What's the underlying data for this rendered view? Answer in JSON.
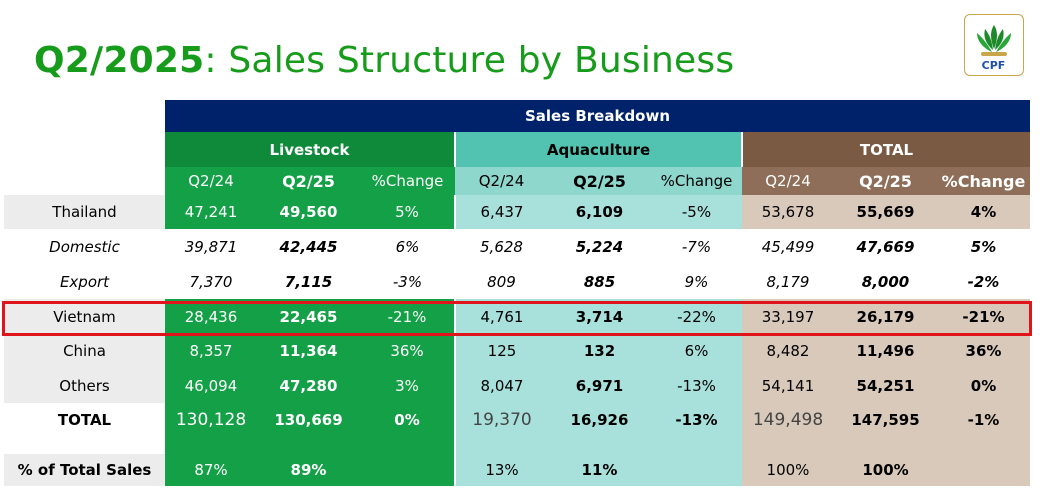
{
  "title": {
    "bold_part": "Q2/2025",
    "rest": ": Sales Structure by Business"
  },
  "logo": {
    "text": "CPF",
    "icon": "cpf-leaf-logo-icon"
  },
  "header": {
    "breakdown": "Sales Breakdown",
    "groups": [
      "Livestock",
      "Aquaculture",
      "TOTAL"
    ],
    "sub": [
      "Q2/24",
      "Q2/25",
      "%Change"
    ]
  },
  "rows": [
    {
      "label": "Thailand",
      "vals": [
        "47,241",
        "49,560",
        "5%",
        "6,437",
        "6,109",
        "-5%",
        "53,678",
        "55,669",
        "4%"
      ]
    },
    {
      "label": "Domestic",
      "vals": [
        "39,871",
        "42,445",
        "6%",
        "5,628",
        "5,224",
        "-7%",
        "45,499",
        "47,669",
        "5%"
      ]
    },
    {
      "label": "Export",
      "vals": [
        "7,370",
        "7,115",
        "-3%",
        "809",
        "885",
        "9%",
        "8,179",
        "8,000",
        "-2%"
      ]
    },
    {
      "label": "Vietnam",
      "vals": [
        "28,436",
        "22,465",
        "-21%",
        "4,761",
        "3,714",
        "-22%",
        "33,197",
        "26,179",
        "-21%"
      ]
    },
    {
      "label": "China",
      "vals": [
        "8,357",
        "11,364",
        "36%",
        "125",
        "132",
        "6%",
        "8,482",
        "11,496",
        "36%"
      ]
    },
    {
      "label": "Others",
      "vals": [
        "46,094",
        "47,280",
        "3%",
        "8,047",
        "6,971",
        "-13%",
        "54,141",
        "54,251",
        "0%"
      ]
    },
    {
      "label": "TOTAL",
      "vals": [
        "130,128",
        "130,669",
        "0%",
        "19,370",
        "16,926",
        "-13%",
        "149,498",
        "147,595",
        "-1%"
      ]
    }
  ],
  "share": {
    "label": "% of Total Sales",
    "vals": [
      "87%",
      "89%",
      "",
      "13%",
      "11%",
      "",
      "100%",
      "100%",
      ""
    ]
  },
  "colors": {
    "title_green": "#169b1a",
    "navy": "#00226a",
    "livestock": "#13a046",
    "aqua": "#a8e1db",
    "total": "#d9c9ba",
    "highlight": "#e0141b"
  }
}
